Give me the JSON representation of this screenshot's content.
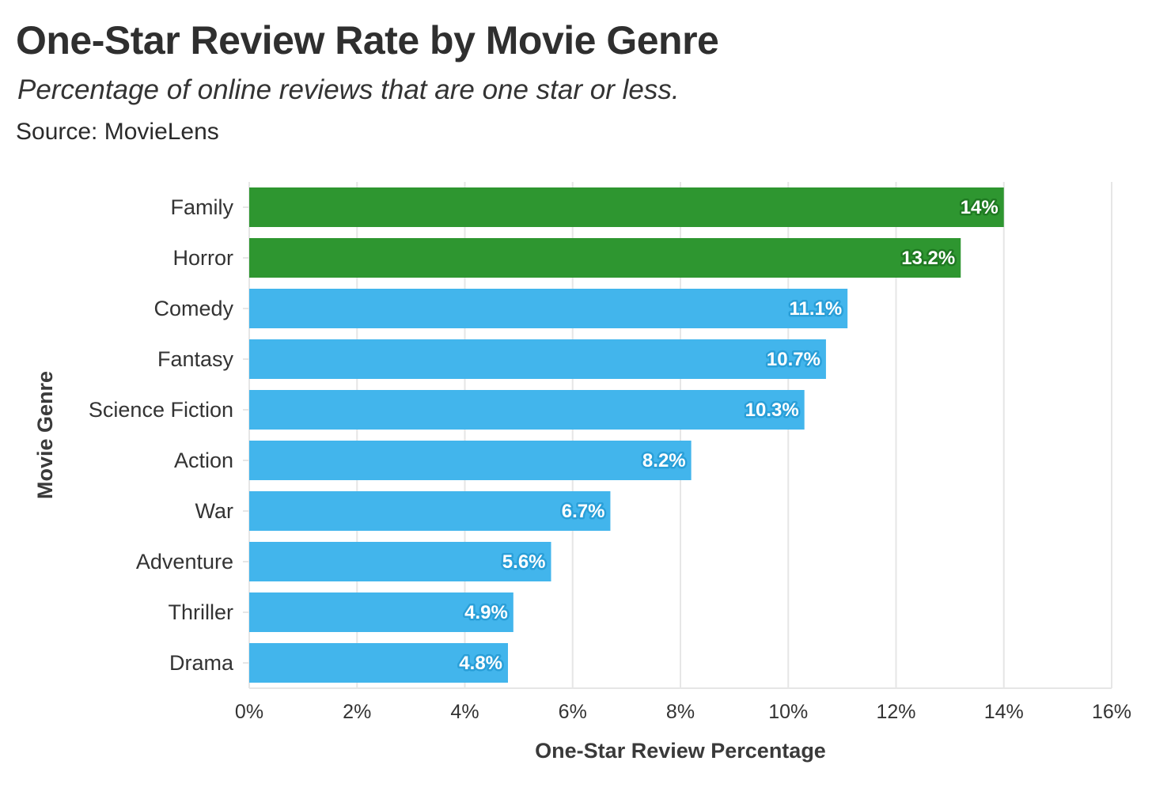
{
  "chart_data": {
    "type": "bar",
    "orientation": "horizontal",
    "title": "One-Star Review Rate by Movie Genre",
    "subtitle": "Percentage of online reviews that are one star or less.",
    "source": "Source: MovieLens",
    "xlabel": "One-Star Review Percentage",
    "ylabel": "Movie Genre",
    "xlim": [
      0,
      16
    ],
    "xticks": [
      "0%",
      "2%",
      "4%",
      "6%",
      "8%",
      "10%",
      "12%",
      "14%",
      "16%"
    ],
    "grid": true,
    "categories": [
      "Family",
      "Horror",
      "Comedy",
      "Fantasy",
      "Science Fiction",
      "Action",
      "War",
      "Adventure",
      "Thriller",
      "Drama"
    ],
    "values": [
      14.0,
      13.2,
      11.1,
      10.7,
      10.3,
      8.2,
      6.7,
      5.6,
      4.9,
      4.8
    ],
    "data_labels": [
      "14%",
      "13.2%",
      "11.1%",
      "10.7%",
      "10.3%",
      "8.2%",
      "6.7%",
      "5.6%",
      "4.9%",
      "4.8%"
    ],
    "highlighted": [
      true,
      true,
      false,
      false,
      false,
      false,
      false,
      false,
      false,
      false
    ],
    "colors": {
      "highlight": "#2e9630",
      "highlight_outline": "#1f7a22",
      "default": "#42b5ec",
      "default_outline": "#2a9fd8",
      "grid": "#e6e6e6"
    }
  }
}
